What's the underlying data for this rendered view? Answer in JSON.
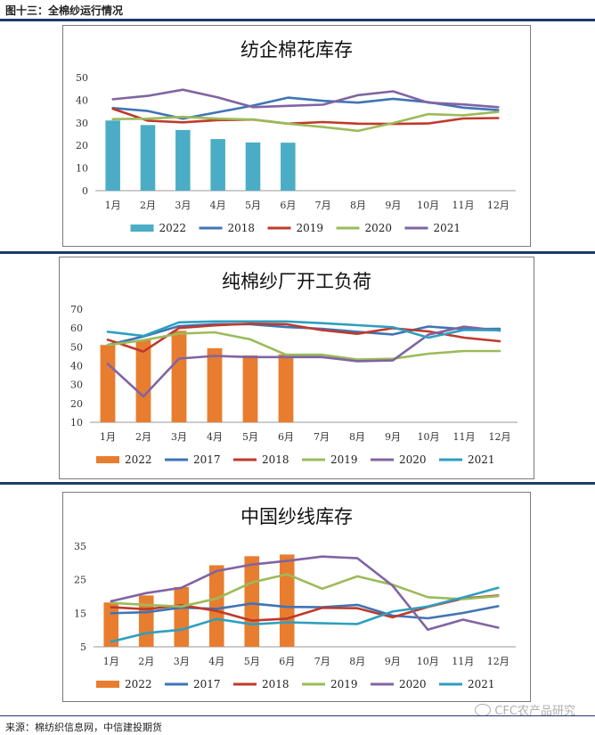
{
  "header": {
    "title": "图十三：全棉纱运行情况"
  },
  "footer": {
    "source": "来源：棉纺织信息网，中信建投期货"
  },
  "watermark": {
    "text": "CFC农产品研究"
  },
  "chart_data": [
    {
      "type": "bar+line",
      "title": "纺企棉花库存",
      "categories": [
        "1月",
        "2月",
        "3月",
        "4月",
        "5月",
        "6月",
        "7月",
        "8月",
        "9月",
        "10月",
        "11月",
        "12月"
      ],
      "ylim": [
        0,
        50
      ],
      "yticks": [
        0,
        10,
        20,
        30,
        40,
        50
      ],
      "bar": {
        "name": "2022",
        "color": "#4bacc6",
        "values": [
          31,
          29,
          26.8,
          22.8,
          21.3,
          21.2
        ]
      },
      "series": [
        {
          "name": "2018",
          "color": "#3f74b5",
          "values": [
            36.5,
            35.2,
            31.8,
            34.7,
            37.6,
            41.1,
            39.7,
            38.9,
            40.6,
            39.1,
            36.7,
            35.6
          ]
        },
        {
          "name": "2019",
          "color": "#c0392b",
          "values": [
            36.2,
            30.9,
            30.2,
            31.2,
            31.4,
            29.6,
            30.3,
            29.6,
            29.5,
            29.7,
            31.9,
            32.1
          ]
        },
        {
          "name": "2020",
          "color": "#9bbb59",
          "values": [
            31.6,
            31.8,
            32.6,
            31.8,
            31.4,
            29.6,
            28.1,
            26.4,
            29.9,
            33.8,
            33.3,
            34.8
          ]
        },
        {
          "name": "2021",
          "color": "#8064a2",
          "values": [
            40.4,
            41.9,
            44.6,
            41.2,
            36.9,
            37.5,
            38,
            42.2,
            43.9,
            38.9,
            38.1,
            36.9
          ]
        }
      ]
    },
    {
      "type": "bar+line",
      "title": "纯棉纱厂开工负荷",
      "categories": [
        "1月",
        "2月",
        "3月",
        "4月",
        "5月",
        "6月",
        "7月",
        "8月",
        "9月",
        "10月",
        "11月",
        "12月"
      ],
      "ylim": [
        10,
        70
      ],
      "yticks": [
        10,
        20,
        30,
        40,
        50,
        60,
        70
      ],
      "bar": {
        "name": "2022",
        "color": "#e87d2f",
        "values": [
          51,
          53.5,
          58.5,
          49.3,
          45.5,
          46
        ]
      },
      "series": [
        {
          "name": "2017",
          "color": "#3f74b5",
          "values": [
            51,
            55.5,
            61,
            62,
            62,
            60.5,
            59.6,
            58,
            56.6,
            60.8,
            59.4,
            59.6
          ]
        },
        {
          "name": "2018",
          "color": "#c0392b",
          "values": [
            53.8,
            47.5,
            60,
            61.4,
            62.3,
            62,
            58.9,
            56.9,
            59.9,
            58.2,
            54.9,
            53
          ]
        },
        {
          "name": "2019",
          "color": "#9bbb59",
          "values": [
            51,
            53.5,
            57,
            57.7,
            54,
            45.8,
            45.8,
            43.3,
            43.7,
            46.4,
            47.8,
            47.8
          ]
        },
        {
          "name": "2020",
          "color": "#8064a2",
          "values": [
            41,
            23.7,
            43.8,
            45.2,
            44.6,
            44.6,
            44.6,
            42.4,
            42.8,
            56.5,
            60.7,
            58.6
          ]
        },
        {
          "name": "2021",
          "color": "#2e9fbf",
          "values": [
            58,
            55.8,
            63,
            63.5,
            63.5,
            63.5,
            62.6,
            61.5,
            60.4,
            54.9,
            59,
            58.8
          ]
        }
      ]
    },
    {
      "type": "bar+line",
      "title": "中国纱线库存",
      "categories": [
        "1月",
        "2月",
        "3月",
        "4月",
        "5月",
        "6月",
        "7月",
        "8月",
        "9月",
        "10月",
        "11月",
        "12月"
      ],
      "ylim": [
        5,
        35
      ],
      "yticks": [
        5,
        15,
        25,
        35
      ],
      "bar": {
        "name": "2022",
        "color": "#e87d2f",
        "values": [
          18.2,
          20.3,
          22.8,
          29.3,
          32,
          32.5
        ]
      },
      "series": [
        {
          "name": "2017",
          "color": "#3f74b5",
          "values": [
            15,
            15.3,
            16.7,
            16.3,
            17.9,
            16.9,
            16.8,
            17.5,
            14.3,
            13.5,
            15.1,
            17.1
          ]
        },
        {
          "name": "2018",
          "color": "#c0392b",
          "values": [
            16.8,
            16.2,
            17.4,
            15.7,
            12.8,
            13.4,
            16.6,
            16.5,
            13.8,
            16.9,
            19.4,
            20.3
          ]
        },
        {
          "name": "2019",
          "color": "#9bbb59",
          "values": [
            18.1,
            17.5,
            17,
            19.4,
            24.2,
            26.6,
            22.3,
            26,
            23.5,
            19.8,
            19.2,
            20.1
          ]
        },
        {
          "name": "2020",
          "color": "#8064a2",
          "values": [
            18.6,
            21,
            22.6,
            27.6,
            29.5,
            30.6,
            31.9,
            31.4,
            23.2,
            10.1,
            13.1,
            10.7
          ]
        },
        {
          "name": "2021",
          "color": "#2e9fbf",
          "values": [
            6.5,
            9.1,
            10.1,
            13.3,
            11.7,
            12.3,
            12,
            11.8,
            15.5,
            17,
            19.7,
            22.6
          ]
        }
      ]
    }
  ]
}
